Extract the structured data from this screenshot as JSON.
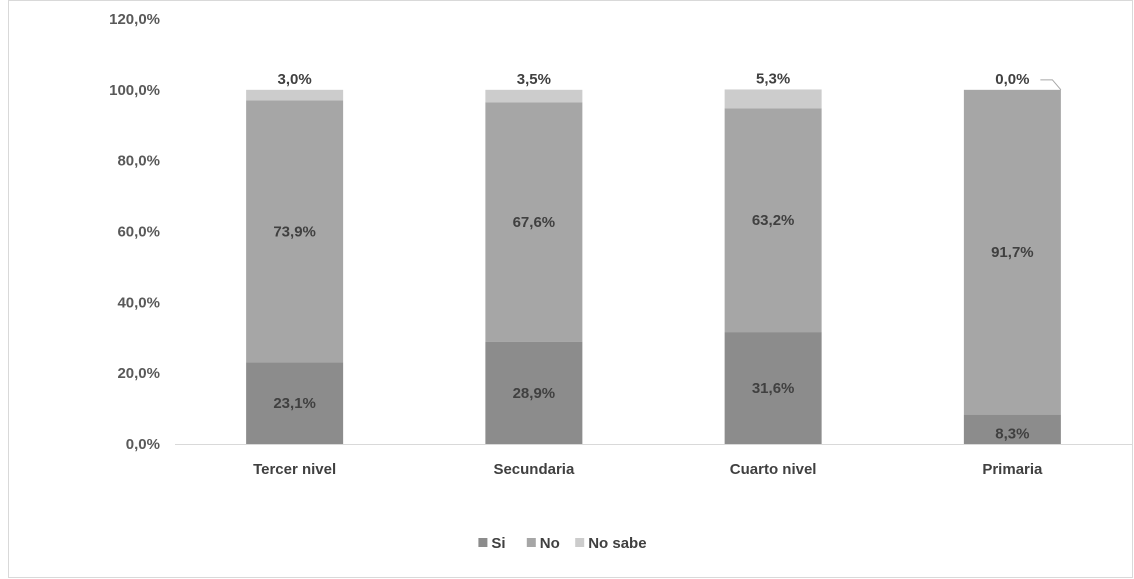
{
  "chart_data": {
    "type": "bar",
    "stacked": true,
    "categories": [
      "Tercer nivel",
      "Secundaria",
      "Cuarto nivel",
      "Primaria"
    ],
    "series": [
      {
        "name": "Si",
        "values": [
          23.1,
          28.9,
          31.6,
          8.3
        ],
        "labels": [
          "23,1%",
          "28,9%",
          "31,6%",
          "8,3%"
        ],
        "color": "#8c8c8c"
      },
      {
        "name": "No",
        "values": [
          73.9,
          67.6,
          63.2,
          91.7
        ],
        "labels": [
          "73,9%",
          "67,6%",
          "63,2%",
          "91,7%"
        ],
        "color": "#a6a6a6"
      },
      {
        "name": "No sabe",
        "values": [
          3.0,
          3.5,
          5.3,
          0.0
        ],
        "labels": [
          "3,0%",
          "3,5%",
          "5,3%",
          "0,0%"
        ],
        "color": "#cccccc"
      }
    ],
    "yticks": [
      0,
      20,
      40,
      60,
      80,
      100,
      120
    ],
    "ytick_labels": [
      "0,0%",
      "20,0%",
      "40,0%",
      "60,0%",
      "80,0%",
      "100,0%",
      "120,0%"
    ],
    "ylim": [
      0,
      120
    ],
    "title": "",
    "xlabel": "",
    "ylabel": "",
    "grid": false,
    "legend_position": "bottom"
  }
}
